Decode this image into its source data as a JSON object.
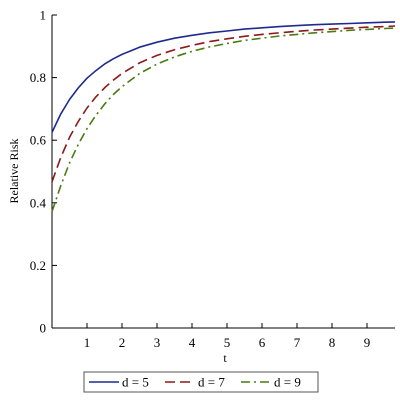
{
  "chart_data": {
    "type": "line",
    "xlabel": "t",
    "ylabel": "Relative Risk",
    "xlim": [
      0,
      9.8
    ],
    "ylim": [
      0,
      1
    ],
    "xticks": [
      "1",
      "2",
      "3",
      "4",
      "5",
      "6",
      "7",
      "8",
      "9"
    ],
    "yticks": [
      "0",
      "0.2",
      "0.4",
      "0.6",
      "0.8",
      "1"
    ],
    "grid": false,
    "legend_position": "bottom",
    "x": [
      0,
      0.25,
      0.5,
      0.75,
      1,
      1.25,
      1.5,
      1.75,
      2,
      2.5,
      3,
      3.5,
      4,
      4.5,
      5,
      5.5,
      6,
      6.5,
      7,
      7.5,
      8,
      8.5,
      9,
      9.5,
      9.8
    ],
    "series": [
      {
        "name": "d = 5",
        "color": "#1f2a8f",
        "dash": "solid",
        "values": [
          0.625,
          0.684,
          0.73,
          0.767,
          0.798,
          0.822,
          0.843,
          0.86,
          0.874,
          0.897,
          0.913,
          0.926,
          0.935,
          0.943,
          0.949,
          0.955,
          0.959,
          0.963,
          0.966,
          0.969,
          0.971,
          0.973,
          0.975,
          0.977,
          0.978
        ]
      },
      {
        "name": "d = 7",
        "color": "#8b1a1a",
        "dash": "dash",
        "values": [
          0.467,
          0.545,
          0.609,
          0.66,
          0.703,
          0.738,
          0.767,
          0.792,
          0.813,
          0.847,
          0.871,
          0.889,
          0.903,
          0.915,
          0.924,
          0.932,
          0.938,
          0.943,
          0.948,
          0.952,
          0.955,
          0.958,
          0.961,
          0.963,
          0.965
        ]
      },
      {
        "name": "d = 9",
        "color": "#4a7a12",
        "dash": "dashdot",
        "values": [
          0.372,
          0.455,
          0.527,
          0.587,
          0.637,
          0.679,
          0.715,
          0.746,
          0.771,
          0.813,
          0.843,
          0.866,
          0.884,
          0.898,
          0.909,
          0.919,
          0.926,
          0.933,
          0.938,
          0.943,
          0.947,
          0.951,
          0.954,
          0.957,
          0.958
        ]
      }
    ]
  }
}
